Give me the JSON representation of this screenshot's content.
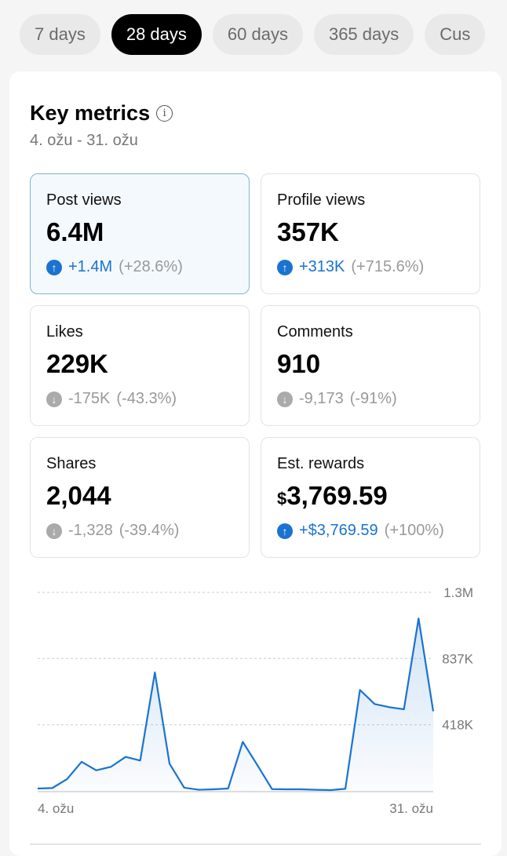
{
  "tabs": [
    {
      "label": "7 days"
    },
    {
      "label": "28 days",
      "active": true
    },
    {
      "label": "60 days"
    },
    {
      "label": "365 days"
    },
    {
      "label": "Cus"
    }
  ],
  "header": {
    "title": "Key metrics",
    "info_icon": "info-icon",
    "range": "4. ožu - 31. ožu"
  },
  "metrics": [
    {
      "label": "Post views",
      "value": "6.4M",
      "delta": "+1.4M",
      "pct": "(+28.6%)",
      "trend": "up",
      "selected": true
    },
    {
      "label": "Profile views",
      "value": "357K",
      "delta": "+313K",
      "pct": "(+715.6%)",
      "trend": "up"
    },
    {
      "label": "Likes",
      "value": "229K",
      "delta": "-175K",
      "pct": "(-43.3%)",
      "trend": "down"
    },
    {
      "label": "Comments",
      "value": "910",
      "delta": "-9,173",
      "pct": "(-91%)",
      "trend": "down"
    },
    {
      "label": "Shares",
      "value": "2,044",
      "delta": "-1,328",
      "pct": "(-39.4%)",
      "trend": "down"
    },
    {
      "label": "Est. rewards",
      "currency": "$",
      "value": "3,769.59",
      "delta": "+$3,769.59",
      "pct": "(+100%)",
      "trend": "up"
    }
  ],
  "colors": {
    "accent": "#1a73d1",
    "down": "#aaaaaa"
  },
  "chart_data": {
    "type": "area",
    "series_metric": "Post views",
    "values": [
      15000,
      18000,
      74000,
      184000,
      130000,
      152000,
      215000,
      192000,
      749000,
      172000,
      20000,
      7000,
      10000,
      15000,
      310000,
      162000,
      11000,
      10000,
      10000,
      7000,
      5000,
      13000,
      638000,
      549000,
      529000,
      516000,
      1090000,
      503000
    ],
    "ylim": [
      0,
      1255000
    ],
    "yticks": [
      {
        "value": 418000,
        "label": "418K"
      },
      {
        "value": 837000,
        "label": "837K"
      },
      {
        "value": 1255000,
        "label": "1.3M"
      }
    ],
    "xtick_labels": [
      "4. ožu",
      "31. ožu"
    ],
    "grid": "dotted horizontal",
    "color": "#1a73d1"
  }
}
